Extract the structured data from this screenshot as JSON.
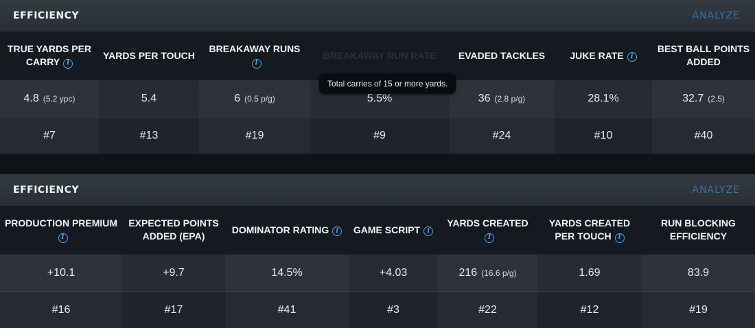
{
  "panel1": {
    "title": "EFFICIENCY",
    "analyze": "ANALYZE",
    "headers": [
      "TRUE YARDS PER CARRY",
      "YARDS PER TOUCH",
      "BREAKAWAY RUNS",
      "BREAKAWAY RUN RATE",
      "EVADED TACKLES",
      "JUKE RATE",
      "BEST BALL POINTS ADDED"
    ],
    "values": [
      {
        "main": "4.8",
        "sub": "(5.2 ypc)"
      },
      {
        "main": "5.4",
        "sub": ""
      },
      {
        "main": "6",
        "sub": "(0.5 p/g)"
      },
      {
        "main": "5.5%",
        "sub": ""
      },
      {
        "main": "36",
        "sub": "(2.8 p/g)"
      },
      {
        "main": "28.1%",
        "sub": ""
      },
      {
        "main": "32.7",
        "sub": "(2.5)"
      }
    ],
    "ranks": [
      "#7",
      "#13",
      "#19",
      "#9",
      "#24",
      "#10",
      "#40"
    ],
    "tooltip": "Total carries of 15 or more yards."
  },
  "panel2": {
    "title": "EFFICIENCY",
    "analyze": "ANALYZE",
    "headers": [
      "PRODUCTION PREMIUM",
      "EXPECTED POINTS ADDED (EPA)",
      "DOMINATOR RATING",
      "GAME SCRIPT",
      "YARDS CREATED",
      "YARDS CREATED PER TOUCH",
      "RUN BLOCKING EFFICIENCY"
    ],
    "values": [
      {
        "main": "+10.1",
        "sub": ""
      },
      {
        "main": "+9.7",
        "sub": ""
      },
      {
        "main": "14.5%",
        "sub": ""
      },
      {
        "main": "+4.03",
        "sub": ""
      },
      {
        "main": "216",
        "sub": "(16.6 p/g)"
      },
      {
        "main": "1.69",
        "sub": ""
      },
      {
        "main": "83.9",
        "sub": ""
      }
    ],
    "ranks": [
      "#16",
      "#17",
      "#41",
      "#3",
      "#22",
      "#12",
      "#19"
    ]
  },
  "icons": {
    "info": "info-icon"
  },
  "colors": {
    "accent": "#4aa3e6",
    "analyze": "#3c6e9e"
  }
}
